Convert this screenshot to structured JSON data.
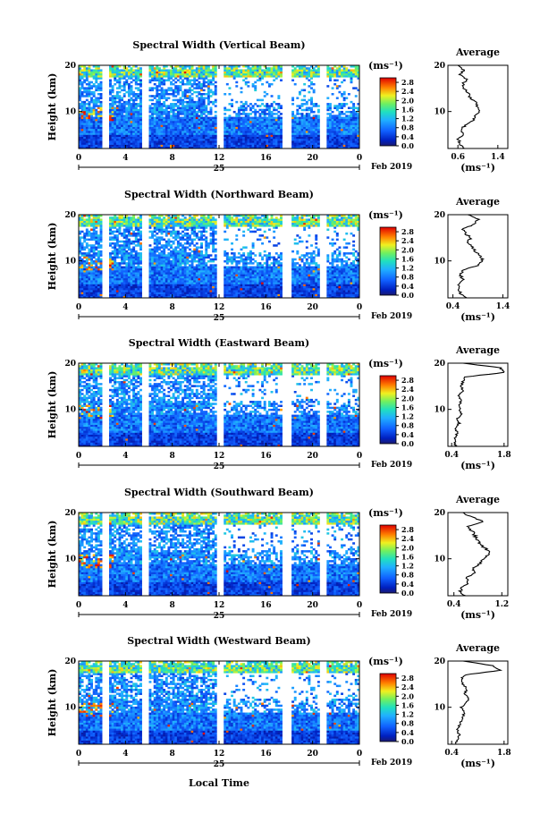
{
  "chart_data": {
    "type": "heatmap",
    "shared": {
      "xlabel": "Local Time",
      "x_ticks": [
        "0",
        "4",
        "8",
        "12",
        "16",
        "20",
        "0"
      ],
      "day_label": "25",
      "date_label": "Feb 2019",
      "ylabel": "Height (km)",
      "y_ticks": [
        "10",
        "20"
      ],
      "colorbar_unit": "(ms⁻¹)",
      "colorbar_ticks": [
        "0.0",
        "0.4",
        "0.8",
        "1.2",
        "1.6",
        "2.0",
        "2.4",
        "2.8"
      ],
      "colorbar_range": [
        0,
        3
      ],
      "avg_title": "Average",
      "avg_unit": "(ms⁻¹)",
      "xlim_hours": [
        0,
        24
      ],
      "ylim_km": [
        2,
        20
      ],
      "data_gaps_hours": [
        [
          2.0,
          2.5
        ],
        [
          5.5,
          6.0
        ],
        [
          11.8,
          12.3
        ],
        [
          17.4,
          18.2
        ],
        [
          20.7,
          21.1
        ]
      ]
    },
    "panels": [
      {
        "title": "Spectral Width (Vertical Beam)",
        "avg_xticks": [
          "0.6",
          "1.4"
        ],
        "avg_xlim": [
          0.4,
          1.6
        ],
        "avg_profile": [
          [
            2,
            0.7
          ],
          [
            3,
            0.65
          ],
          [
            4,
            0.6
          ],
          [
            5,
            0.7
          ],
          [
            6,
            0.65
          ],
          [
            7,
            0.75
          ],
          [
            8,
            0.9
          ],
          [
            9,
            0.95
          ],
          [
            10,
            1.05
          ],
          [
            11,
            1.0
          ],
          [
            12,
            0.95
          ],
          [
            13,
            0.85
          ],
          [
            14,
            0.8
          ],
          [
            15,
            0.72
          ],
          [
            16,
            0.7
          ],
          [
            17,
            0.78
          ],
          [
            18,
            0.65
          ],
          [
            19,
            0.72
          ],
          [
            20,
            0.6
          ]
        ]
      },
      {
        "title": "Spectral Width (Northward Beam)",
        "avg_xticks": [
          "0.4",
          "1.4"
        ],
        "avg_xlim": [
          0.3,
          1.5
        ],
        "avg_profile": [
          [
            2,
            0.7
          ],
          [
            3,
            0.55
          ],
          [
            4,
            0.5
          ],
          [
            5,
            0.52
          ],
          [
            6,
            0.6
          ],
          [
            7,
            0.55
          ],
          [
            8,
            0.6
          ],
          [
            9,
            0.9
          ],
          [
            10,
            1.0
          ],
          [
            11,
            0.95
          ],
          [
            12,
            0.85
          ],
          [
            13,
            0.8
          ],
          [
            14,
            0.7
          ],
          [
            15,
            0.75
          ],
          [
            16,
            0.65
          ],
          [
            17,
            0.6
          ],
          [
            18,
            0.85
          ],
          [
            19,
            0.9
          ],
          [
            20,
            0.7
          ]
        ]
      },
      {
        "title": "Spectral Width (Eastward Beam)",
        "avg_xticks": [
          "0.4",
          "1.8"
        ],
        "avg_xlim": [
          0.3,
          1.9
        ],
        "avg_profile": [
          [
            2,
            0.5
          ],
          [
            3,
            0.48
          ],
          [
            4,
            0.5
          ],
          [
            5,
            0.55
          ],
          [
            6,
            0.5
          ],
          [
            7,
            0.6
          ],
          [
            8,
            0.55
          ],
          [
            9,
            0.65
          ],
          [
            10,
            0.6
          ],
          [
            11,
            0.62
          ],
          [
            12,
            0.65
          ],
          [
            13,
            0.6
          ],
          [
            14,
            0.7
          ],
          [
            15,
            0.65
          ],
          [
            16,
            0.7
          ],
          [
            17,
            0.75
          ],
          [
            18,
            1.8
          ],
          [
            19,
            1.7
          ],
          [
            20,
            0.7
          ]
        ]
      },
      {
        "title": "Spectral Width (Southward Beam)",
        "avg_xticks": [
          "0.4",
          "1.2"
        ],
        "avg_xlim": [
          0.3,
          1.3
        ],
        "avg_profile": [
          [
            2,
            0.6
          ],
          [
            3,
            0.5
          ],
          [
            4,
            0.55
          ],
          [
            5,
            0.65
          ],
          [
            6,
            0.6
          ],
          [
            7,
            0.75
          ],
          [
            8,
            0.7
          ],
          [
            9,
            0.85
          ],
          [
            10,
            0.9
          ],
          [
            11,
            1.0
          ],
          [
            12,
            0.95
          ],
          [
            13,
            0.85
          ],
          [
            14,
            0.8
          ],
          [
            15,
            0.75
          ],
          [
            16,
            0.7
          ],
          [
            17,
            0.65
          ],
          [
            18,
            0.9
          ],
          [
            19,
            0.7
          ],
          [
            20,
            0.55
          ]
        ]
      },
      {
        "title": "Spectral Width (Westward Beam)",
        "avg_xticks": [
          "0.4",
          "1.8"
        ],
        "avg_xlim": [
          0.3,
          1.9
        ],
        "avg_profile": [
          [
            2,
            0.5
          ],
          [
            3,
            0.55
          ],
          [
            4,
            0.6
          ],
          [
            5,
            0.55
          ],
          [
            6,
            0.6
          ],
          [
            7,
            0.65
          ],
          [
            8,
            0.7
          ],
          [
            9,
            0.75
          ],
          [
            10,
            0.65
          ],
          [
            11,
            0.8
          ],
          [
            12,
            0.85
          ],
          [
            13,
            0.75
          ],
          [
            14,
            0.8
          ],
          [
            15,
            0.7
          ],
          [
            16,
            0.65
          ],
          [
            17,
            0.75
          ],
          [
            18,
            1.7
          ],
          [
            19,
            1.5
          ],
          [
            20,
            0.7
          ]
        ]
      }
    ]
  }
}
